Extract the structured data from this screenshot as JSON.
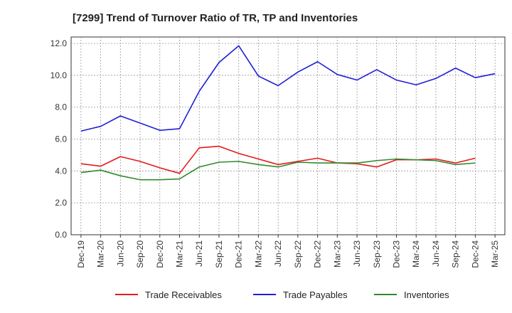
{
  "chart_data": {
    "type": "line",
    "title": "[7299]  Trend of Turnover Ratio of TR, TP and Inventories",
    "xlabel": "",
    "ylabel": "",
    "x": [
      "Dec-19",
      "Mar-20",
      "Jun-20",
      "Sep-20",
      "Dec-20",
      "Mar-21",
      "Jun-21",
      "Sep-21",
      "Dec-21",
      "Mar-22",
      "Jun-22",
      "Sep-22",
      "Dec-22",
      "Mar-23",
      "Jun-23",
      "Sep-23",
      "Dec-23",
      "Mar-24",
      "Jun-24",
      "Sep-24",
      "Dec-24",
      "Mar-25"
    ],
    "yticks": [
      "0.0",
      "2.0",
      "4.0",
      "6.0",
      "8.0",
      "10.0",
      "12.0"
    ],
    "ylim": [
      0,
      12.4
    ],
    "grid": true,
    "legend_position": "bottom",
    "series": [
      {
        "name": "Trade Receivables",
        "color": "#e31a1c",
        "values": [
          4.45,
          4.3,
          4.9,
          4.6,
          4.2,
          3.85,
          5.45,
          5.55,
          5.1,
          4.75,
          4.4,
          4.6,
          4.8,
          4.5,
          4.45,
          4.25,
          4.7,
          4.7,
          4.75,
          4.5,
          4.8,
          null
        ]
      },
      {
        "name": "Trade Payables",
        "color": "#1f1fd6",
        "values": [
          6.5,
          6.8,
          7.45,
          7.0,
          6.55,
          6.65,
          9.0,
          10.8,
          11.85,
          9.95,
          9.35,
          10.2,
          10.85,
          10.05,
          9.7,
          10.35,
          9.7,
          9.4,
          9.8,
          10.45,
          9.85,
          10.1
        ]
      },
      {
        "name": "Inventories",
        "color": "#2e8b2e",
        "values": [
          3.9,
          4.05,
          3.7,
          3.45,
          3.45,
          3.5,
          4.25,
          4.55,
          4.6,
          4.4,
          4.25,
          4.55,
          4.5,
          4.5,
          4.5,
          4.65,
          4.75,
          4.7,
          4.65,
          4.4,
          4.5,
          null
        ]
      }
    ]
  }
}
